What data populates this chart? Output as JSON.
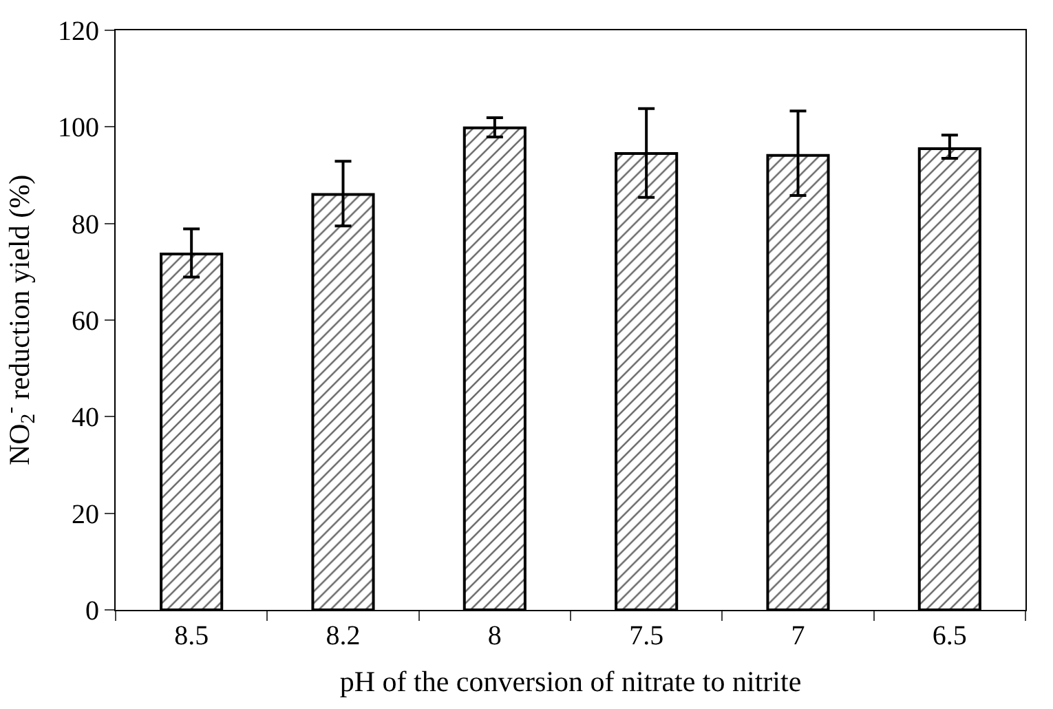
{
  "chart_data": {
    "type": "bar",
    "xlabel": "pH of the conversion of nitrate to nitrite",
    "ylabel": "NO$_{2}$$^{-}$ reduction yield (%)",
    "categories": [
      "8.5",
      "8.2",
      "8",
      "7.5",
      "7",
      "6.5"
    ],
    "series": [
      {
        "color": "#000000",
        "values": [
          73.7,
          86.0,
          99.8,
          94.5,
          94.1,
          95.5
        ],
        "errors": [
          [
            68.9,
            78.9
          ],
          [
            79.5,
            92.9
          ],
          [
            97.9,
            101.9
          ],
          [
            85.4,
            103.8
          ],
          [
            85.8,
            103.3
          ],
          [
            93.5,
            98.3
          ]
        ]
      }
    ],
    "ylim": [
      0,
      120
    ],
    "yticks": [
      0,
      20,
      40,
      60,
      80,
      100,
      120
    ],
    "grid": false,
    "legend": false
  }
}
